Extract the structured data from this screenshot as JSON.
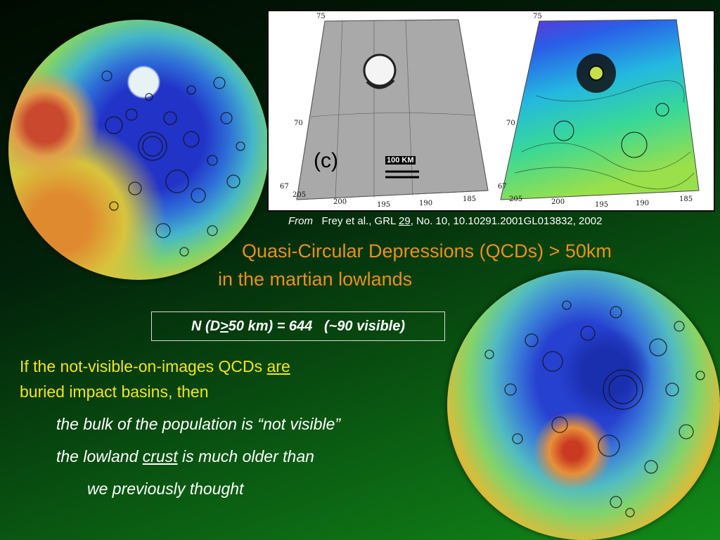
{
  "figure": {
    "panel_label": "(c)",
    "scale_label": "100 KM",
    "left_map": {
      "lat_labels": [
        "75",
        "70",
        "67"
      ],
      "lon_labels": [
        "205",
        "200",
        "195",
        "190",
        "185"
      ]
    },
    "right_map": {
      "lat_labels": [
        "75",
        "70",
        "67"
      ],
      "lon_labels": [
        "205",
        "200",
        "195",
        "190",
        "185"
      ]
    }
  },
  "citation": {
    "from": "From",
    "text_before": "Frey et al., GRL ",
    "volume": "29",
    "text_after": ", No. 10, 10.10291.2001GL013832, 2002"
  },
  "title": {
    "line1": "Quasi-Circular Depressions (QCDs) > 50km",
    "line2": "in the martian lowlands"
  },
  "count_box": {
    "prefix": "N (D",
    "ge_symbol": ">",
    "suffix": "50 km) = 644   (~90 visible)"
  },
  "body": {
    "line1_before": "If the not-visible-on-images QCDs ",
    "line1_underlined": "are",
    "line2": "buried impact basins, then"
  },
  "bullets": {
    "b1": "the bulk of the population is “not visible”",
    "b2_before": "the lowland ",
    "b2_underlined": "crust",
    "b2_after": " is much older than",
    "b3": "we previously thought"
  },
  "colors": {
    "title": "#e8911c",
    "body_yellow": "#f2e51e",
    "white_text": "#ffffff",
    "background_dark": "#010a01",
    "background_green": "#128a18"
  }
}
